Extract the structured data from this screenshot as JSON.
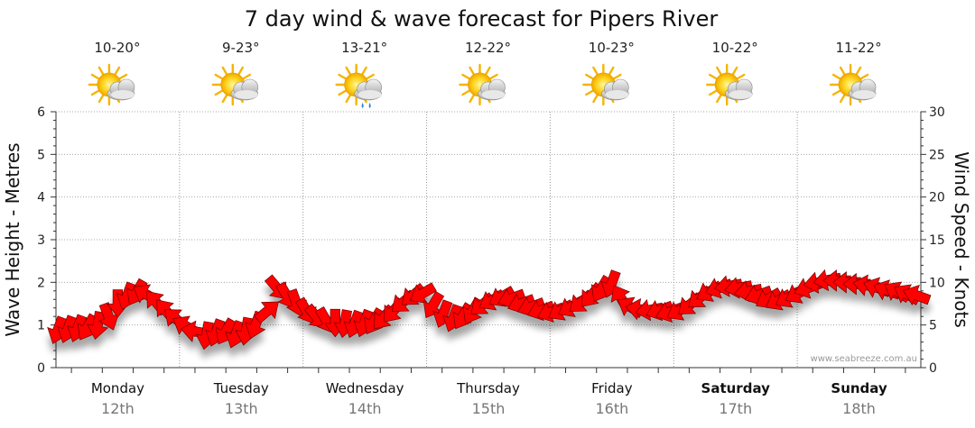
{
  "chart_data": {
    "type": "line",
    "title": "7 day wind & wave forecast for Pipers River",
    "ylabel_left": "Wave Height - Metres",
    "ylabel_right": "Wind Speed - Knots",
    "yticks_left": [
      "0",
      "1",
      "2",
      "3",
      "4",
      "5",
      "6"
    ],
    "yticks_right": [
      "0",
      "5",
      "10",
      "15",
      "20",
      "25",
      "30"
    ],
    "ylim_left": [
      0,
      6
    ],
    "ylim_right": [
      0,
      30
    ],
    "grid": true,
    "credit": "www.seabreeze.com.au",
    "days": [
      {
        "name": "Monday",
        "date": "12th",
        "temp": "10-20°",
        "weather_icon": "sun-cloud-icon",
        "bold": false
      },
      {
        "name": "Tuesday",
        "date": "13th",
        "temp": "9-23°",
        "weather_icon": "sun-cloud-icon",
        "bold": false
      },
      {
        "name": "Wednesday",
        "date": "14th",
        "temp": "13-21°",
        "weather_icon": "sun-cloud-rain-icon",
        "bold": false
      },
      {
        "name": "Thursday",
        "date": "15th",
        "temp": "12-22°",
        "weather_icon": "sun-cloud-icon",
        "bold": false
      },
      {
        "name": "Friday",
        "date": "16th",
        "temp": "10-23°",
        "weather_icon": "sun-cloud-icon",
        "bold": false
      },
      {
        "name": "Saturday",
        "date": "17th",
        "temp": "10-22°",
        "weather_icon": "sun-cloud-icon",
        "bold": true
      },
      {
        "name": "Sunday",
        "date": "18th",
        "temp": "11-22°",
        "weather_icon": "sun-cloud-icon",
        "bold": true
      }
    ],
    "series": [
      {
        "kind": "wind-arrows",
        "color": "#ff0000",
        "unit": "knots",
        "points": [
          {
            "d": 0.02,
            "v": 4.6,
            "dir": 200
          },
          {
            "d": 0.1,
            "v": 4.7,
            "dir": 200
          },
          {
            "d": 0.18,
            "v": 4.8,
            "dir": 200
          },
          {
            "d": 0.26,
            "v": 4.9,
            "dir": 210
          },
          {
            "d": 0.34,
            "v": 5.2,
            "dir": 190
          },
          {
            "d": 0.42,
            "v": 6.2,
            "dir": 160
          },
          {
            "d": 0.5,
            "v": 7.8,
            "dir": 180
          },
          {
            "d": 0.58,
            "v": 8.6,
            "dir": 200
          },
          {
            "d": 0.66,
            "v": 9.0,
            "dir": 210
          },
          {
            "d": 0.74,
            "v": 8.5,
            "dir": 300
          },
          {
            "d": 0.82,
            "v": 7.5,
            "dir": 320
          },
          {
            "d": 0.9,
            "v": 6.5,
            "dir": 320
          },
          {
            "d": 0.98,
            "v": 5.6,
            "dir": 310
          },
          {
            "d": 1.06,
            "v": 4.8,
            "dir": 300
          },
          {
            "d": 1.14,
            "v": 4.2,
            "dir": 280
          },
          {
            "d": 1.22,
            "v": 4.0,
            "dir": 190
          },
          {
            "d": 1.3,
            "v": 4.3,
            "dir": 200
          },
          {
            "d": 1.38,
            "v": 4.4,
            "dir": 210
          },
          {
            "d": 1.46,
            "v": 4.1,
            "dir": 200
          },
          {
            "d": 1.54,
            "v": 4.5,
            "dir": 190
          },
          {
            "d": 1.62,
            "v": 5.2,
            "dir": 200
          },
          {
            "d": 1.7,
            "v": 6.5,
            "dir": 50
          },
          {
            "d": 1.78,
            "v": 9.5,
            "dir": 140
          },
          {
            "d": 1.86,
            "v": 8.6,
            "dir": 150
          },
          {
            "d": 1.94,
            "v": 7.8,
            "dir": 160
          },
          {
            "d": 2.02,
            "v": 6.8,
            "dir": 150
          },
          {
            "d": 2.1,
            "v": 6.1,
            "dir": 140
          },
          {
            "d": 2.18,
            "v": 5.7,
            "dir": 150
          },
          {
            "d": 2.26,
            "v": 5.5,
            "dir": 180
          },
          {
            "d": 2.34,
            "v": 5.4,
            "dir": 190
          },
          {
            "d": 2.42,
            "v": 5.3,
            "dir": 200
          },
          {
            "d": 2.5,
            "v": 5.4,
            "dir": 200
          },
          {
            "d": 2.58,
            "v": 5.6,
            "dir": 210
          },
          {
            "d": 2.66,
            "v": 6.0,
            "dir": 220
          },
          {
            "d": 2.74,
            "v": 6.8,
            "dir": 220
          },
          {
            "d": 2.82,
            "v": 7.8,
            "dir": 230
          },
          {
            "d": 2.9,
            "v": 8.6,
            "dir": 230
          },
          {
            "d": 2.98,
            "v": 8.8,
            "dir": 240
          },
          {
            "d": 3.06,
            "v": 7.5,
            "dir": 210
          },
          {
            "d": 3.14,
            "v": 6.5,
            "dir": 200
          },
          {
            "d": 3.22,
            "v": 6.0,
            "dir": 200
          },
          {
            "d": 3.3,
            "v": 6.2,
            "dir": 210
          },
          {
            "d": 3.38,
            "v": 6.8,
            "dir": 210
          },
          {
            "d": 3.46,
            "v": 7.5,
            "dir": 230
          },
          {
            "d": 3.54,
            "v": 8.0,
            "dir": 240
          },
          {
            "d": 3.62,
            "v": 8.4,
            "dir": 240
          },
          {
            "d": 3.7,
            "v": 8.2,
            "dir": 250
          },
          {
            "d": 3.78,
            "v": 7.6,
            "dir": 250
          },
          {
            "d": 3.86,
            "v": 7.2,
            "dir": 250
          },
          {
            "d": 3.94,
            "v": 6.8,
            "dir": 250
          },
          {
            "d": 4.02,
            "v": 6.6,
            "dir": 250
          },
          {
            "d": 4.1,
            "v": 6.8,
            "dir": 240
          },
          {
            "d": 4.18,
            "v": 7.2,
            "dir": 240
          },
          {
            "d": 4.26,
            "v": 7.8,
            "dir": 230
          },
          {
            "d": 4.34,
            "v": 8.6,
            "dir": 220
          },
          {
            "d": 4.42,
            "v": 9.4,
            "dir": 210
          },
          {
            "d": 4.5,
            "v": 10.0,
            "dir": 200
          },
          {
            "d": 4.58,
            "v": 8.0,
            "dir": 330
          },
          {
            "d": 4.66,
            "v": 7.0,
            "dir": 300
          },
          {
            "d": 4.74,
            "v": 6.8,
            "dir": 280
          },
          {
            "d": 4.82,
            "v": 6.8,
            "dir": 260
          },
          {
            "d": 4.9,
            "v": 6.8,
            "dir": 250
          },
          {
            "d": 4.98,
            "v": 6.6,
            "dir": 250
          },
          {
            "d": 5.06,
            "v": 6.8,
            "dir": 240
          },
          {
            "d": 5.14,
            "v": 7.5,
            "dir": 230
          },
          {
            "d": 5.22,
            "v": 8.3,
            "dir": 230
          },
          {
            "d": 5.3,
            "v": 9.0,
            "dir": 240
          },
          {
            "d": 5.38,
            "v": 9.4,
            "dir": 250
          },
          {
            "d": 5.46,
            "v": 9.6,
            "dir": 260
          },
          {
            "d": 5.54,
            "v": 9.4,
            "dir": 260
          },
          {
            "d": 5.62,
            "v": 9.0,
            "dir": 260
          },
          {
            "d": 5.7,
            "v": 8.6,
            "dir": 250
          },
          {
            "d": 5.78,
            "v": 8.2,
            "dir": 240
          },
          {
            "d": 5.86,
            "v": 8.0,
            "dir": 240
          },
          {
            "d": 5.94,
            "v": 8.3,
            "dir": 240
          },
          {
            "d": 6.02,
            "v": 8.8,
            "dir": 240
          },
          {
            "d": 6.1,
            "v": 9.4,
            "dir": 250
          },
          {
            "d": 6.18,
            "v": 10.0,
            "dir": 260
          },
          {
            "d": 6.26,
            "v": 10.3,
            "dir": 260
          },
          {
            "d": 6.34,
            "v": 10.2,
            "dir": 270
          },
          {
            "d": 6.42,
            "v": 10.0,
            "dir": 270
          },
          {
            "d": 6.5,
            "v": 9.8,
            "dir": 270
          },
          {
            "d": 6.58,
            "v": 9.6,
            "dir": 280
          },
          {
            "d": 6.66,
            "v": 9.3,
            "dir": 290
          },
          {
            "d": 6.74,
            "v": 9.0,
            "dir": 290
          },
          {
            "d": 6.82,
            "v": 8.8,
            "dir": 300
          },
          {
            "d": 6.9,
            "v": 8.5,
            "dir": 300
          },
          {
            "d": 6.98,
            "v": 8.4,
            "dir": 290
          }
        ]
      }
    ]
  }
}
